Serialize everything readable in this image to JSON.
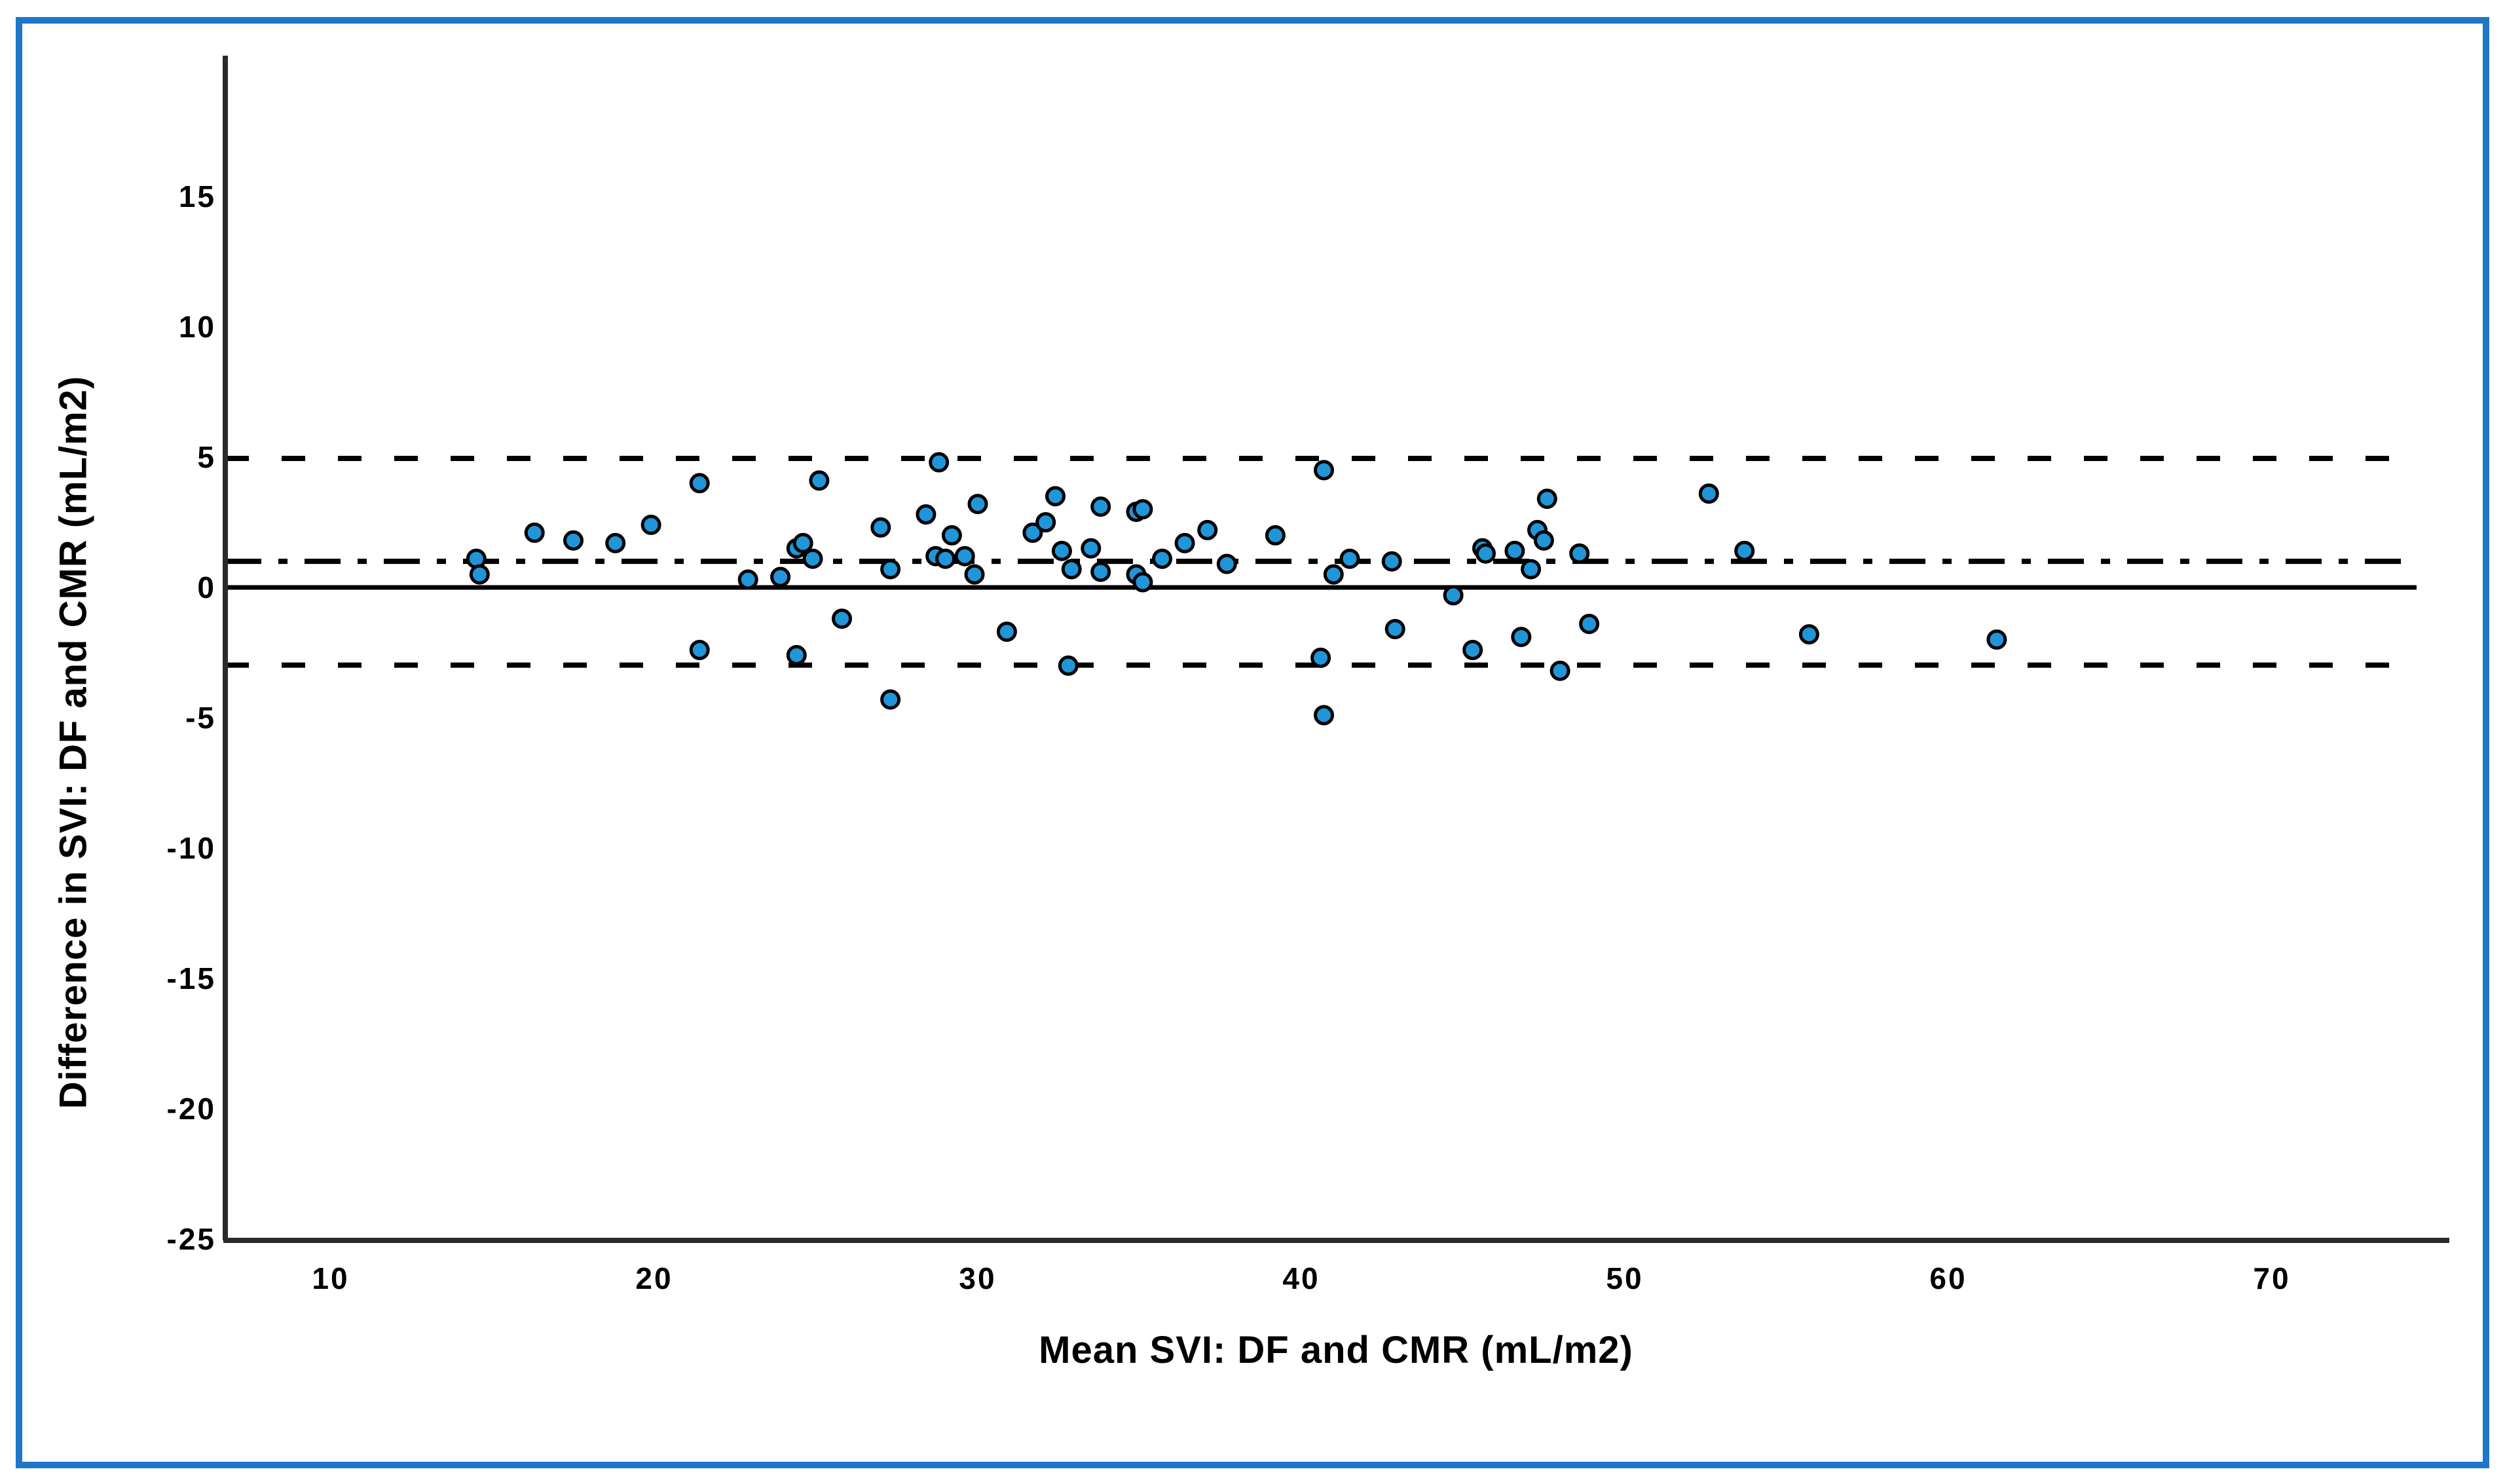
{
  "figure": {
    "border_color": "#1e77c8",
    "background_color": "#ffffff",
    "axis_color": "#2b2b2b",
    "text_color": "#000000"
  },
  "chart_data": {
    "type": "scatter",
    "title": "",
    "xlabel": "Mean SVI: DF and CMR (mL/m2)",
    "ylabel": "Difference in SVI: DF and CMR (mL/m2)",
    "xlim": [
      6.74,
      75.49
    ],
    "ylim": [
      -25.05,
      20.4
    ],
    "x_ticks": [
      10,
      20,
      30,
      40,
      50,
      60,
      70
    ],
    "y_ticks": [
      15,
      10,
      5,
      0,
      -5,
      -10,
      -15,
      -20,
      -25
    ],
    "grid": false,
    "legend": "none",
    "marker_color": "#2095d8",
    "marker_outline": "#000000",
    "reference_lines": [
      {
        "name": "upper-limit-of-agreement",
        "value": 4.95,
        "style": "dashed",
        "color": "#000000"
      },
      {
        "name": "mean-bias",
        "value": 1.0,
        "style": "dashdot",
        "color": "#000000"
      },
      {
        "name": "zero-line",
        "value": 0.0,
        "style": "solid",
        "color": "#000000"
      },
      {
        "name": "lower-limit-of-agreement",
        "value": -2.98,
        "style": "dashed",
        "color": "#000000"
      }
    ],
    "points": [
      [
        14.5,
        1.1
      ],
      [
        14.6,
        0.5
      ],
      [
        16.3,
        2.1
      ],
      [
        17.5,
        1.8
      ],
      [
        18.8,
        1.7
      ],
      [
        19.9,
        2.4
      ],
      [
        21.4,
        4.0
      ],
      [
        21.4,
        -2.4
      ],
      [
        22.9,
        0.3
      ],
      [
        23.9,
        0.4
      ],
      [
        24.4,
        1.5
      ],
      [
        24.6,
        1.7
      ],
      [
        24.9,
        1.1
      ],
      [
        25.1,
        4.1
      ],
      [
        25.8,
        -1.2
      ],
      [
        24.4,
        -2.6
      ],
      [
        27.0,
        2.3
      ],
      [
        27.3,
        0.7
      ],
      [
        27.3,
        -4.3
      ],
      [
        28.4,
        2.8
      ],
      [
        28.7,
        1.2
      ],
      [
        28.8,
        4.8
      ],
      [
        29.0,
        1.1
      ],
      [
        29.2,
        2.0
      ],
      [
        29.6,
        1.2
      ],
      [
        29.9,
        0.5
      ],
      [
        30.0,
        3.2
      ],
      [
        30.9,
        -1.7
      ],
      [
        31.7,
        2.1
      ],
      [
        32.1,
        2.5
      ],
      [
        32.4,
        3.5
      ],
      [
        32.6,
        1.4
      ],
      [
        32.8,
        -3.0
      ],
      [
        32.9,
        0.7
      ],
      [
        33.5,
        1.5
      ],
      [
        33.8,
        3.1
      ],
      [
        33.8,
        0.6
      ],
      [
        34.9,
        2.9
      ],
      [
        35.1,
        3.0
      ],
      [
        34.9,
        0.5
      ],
      [
        35.1,
        0.2
      ],
      [
        35.7,
        1.1
      ],
      [
        36.4,
        1.7
      ],
      [
        37.1,
        2.2
      ],
      [
        37.7,
        0.9
      ],
      [
        39.2,
        2.0
      ],
      [
        40.7,
        4.5
      ],
      [
        40.6,
        -2.7
      ],
      [
        40.7,
        -4.9
      ],
      [
        41.0,
        0.5
      ],
      [
        41.5,
        1.1
      ],
      [
        42.8,
        1.0
      ],
      [
        42.9,
        -1.6
      ],
      [
        44.7,
        -0.3
      ],
      [
        45.3,
        -2.4
      ],
      [
        45.6,
        1.5
      ],
      [
        45.7,
        1.3
      ],
      [
        46.6,
        1.4
      ],
      [
        46.8,
        -1.9
      ],
      [
        47.1,
        0.7
      ],
      [
        47.3,
        2.2
      ],
      [
        47.5,
        1.8
      ],
      [
        47.6,
        3.4
      ],
      [
        48.0,
        -3.2
      ],
      [
        48.6,
        1.3
      ],
      [
        48.9,
        -1.4
      ],
      [
        52.6,
        3.6
      ],
      [
        53.7,
        1.4
      ],
      [
        55.7,
        -1.8
      ],
      [
        61.5,
        -2.0
      ]
    ]
  }
}
